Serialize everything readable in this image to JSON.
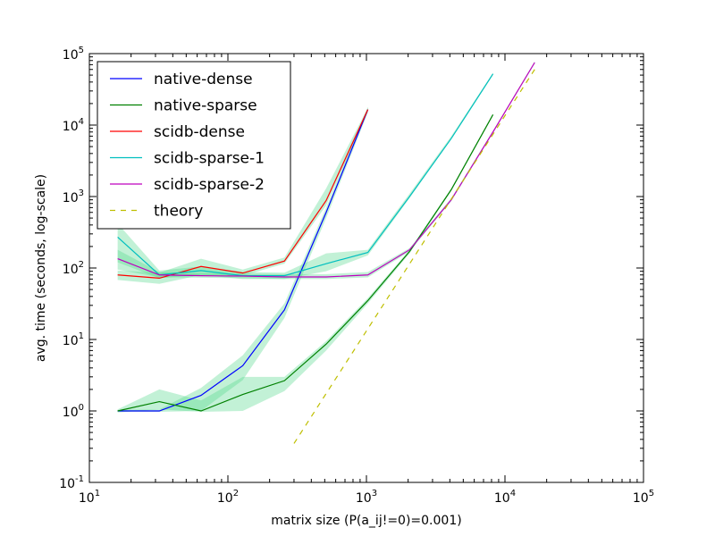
{
  "chart_data": {
    "type": "line",
    "xlabel": "matrix size (P(a_ij!=0)=0.001)",
    "ylabel": "avg. time (seconds, log-scale)",
    "xscale": "log",
    "yscale": "log",
    "xlim": [
      10,
      100000
    ],
    "ylim": [
      0.1,
      100000
    ],
    "x_ticks": [
      {
        "value": 10,
        "base": "10",
        "exp": "1"
      },
      {
        "value": 100,
        "base": "10",
        "exp": "2"
      },
      {
        "value": 1000,
        "base": "10",
        "exp": "3"
      },
      {
        "value": 10000,
        "base": "10",
        "exp": "4"
      },
      {
        "value": 100000,
        "base": "10",
        "exp": "5"
      }
    ],
    "y_ticks": [
      {
        "value": 0.1,
        "base": "10",
        "exp": "-1"
      },
      {
        "value": 1,
        "base": "10",
        "exp": "0"
      },
      {
        "value": 10,
        "base": "10",
        "exp": "1"
      },
      {
        "value": 100,
        "base": "10",
        "exp": "2"
      },
      {
        "value": 1000,
        "base": "10",
        "exp": "3"
      },
      {
        "value": 10000,
        "base": "10",
        "exp": "4"
      },
      {
        "value": 100000,
        "base": "10",
        "exp": "5"
      }
    ],
    "legend_position": "top-left",
    "grid": false,
    "band_color": "#4fd88a",
    "series": [
      {
        "name": "native-dense",
        "color": "#0000ff",
        "dash": false,
        "x": [
          16,
          32,
          64,
          128,
          256,
          512,
          1024
        ],
        "y": [
          1.0,
          1.0,
          1.65,
          4.3,
          26,
          600,
          16500
        ],
        "band_low": [
          0.97,
          0.97,
          1.0,
          2.7,
          20,
          500,
          15000
        ],
        "band_high": [
          1.03,
          1.05,
          2.1,
          6.0,
          32,
          700,
          18000
        ]
      },
      {
        "name": "native-sparse",
        "color": "#008000",
        "dash": false,
        "x": [
          16,
          32,
          64,
          128,
          256,
          512,
          1024,
          2048,
          4096,
          8192
        ],
        "y": [
          1.0,
          1.35,
          1.0,
          1.7,
          2.65,
          8.6,
          35,
          170,
          1250,
          14000
        ],
        "band_low": [
          0.95,
          1.05,
          0.97,
          1.0,
          1.9,
          7.0,
          32,
          160,
          1200,
          13500
        ],
        "band_high": [
          1.05,
          2.0,
          1.4,
          3.0,
          3.0,
          9.5,
          38,
          180,
          1300,
          14500
        ]
      },
      {
        "name": "scidb-dense",
        "color": "#ff0000",
        "dash": false,
        "x": [
          16,
          32,
          64,
          128,
          256,
          512,
          1024
        ],
        "y": [
          80,
          72,
          105,
          85,
          125,
          880,
          16500
        ],
        "band_low": [
          68,
          60,
          80,
          78,
          115,
          750,
          15500
        ],
        "band_high": [
          92,
          86,
          135,
          95,
          140,
          1300,
          17500
        ]
      },
      {
        "name": "scidb-sparse-1",
        "color": "#00bfbf",
        "dash": false,
        "x": [
          16,
          32,
          64,
          128,
          256,
          512,
          1024,
          2048,
          4096,
          8192
        ],
        "y": [
          270,
          80,
          92,
          78,
          78,
          115,
          165,
          1000,
          6500,
          52000
        ],
        "band_low": [
          120,
          72,
          80,
          70,
          70,
          90,
          150,
          950,
          6300,
          50000
        ],
        "band_high": [
          420,
          92,
          105,
          88,
          86,
          160,
          180,
          1100,
          7000,
          54000
        ]
      },
      {
        "name": "scidb-sparse-2",
        "color": "#bf00bf",
        "dash": false,
        "x": [
          16,
          32,
          64,
          128,
          256,
          512,
          1024,
          2048,
          4096,
          8192,
          16384
        ],
        "y": [
          135,
          80,
          78,
          77,
          75,
          75,
          80,
          180,
          900,
          8000,
          75000
        ],
        "band_low": [
          95,
          74,
          73,
          72,
          70,
          70,
          74,
          170,
          860,
          7700,
          72000
        ],
        "band_high": [
          180,
          88,
          84,
          83,
          82,
          82,
          88,
          190,
          950,
          8300,
          78000
        ]
      },
      {
        "name": "theory",
        "color": "#bfbf00",
        "dash": true,
        "x": [
          300,
          16384
        ],
        "y": [
          0.35,
          60000
        ]
      }
    ]
  }
}
